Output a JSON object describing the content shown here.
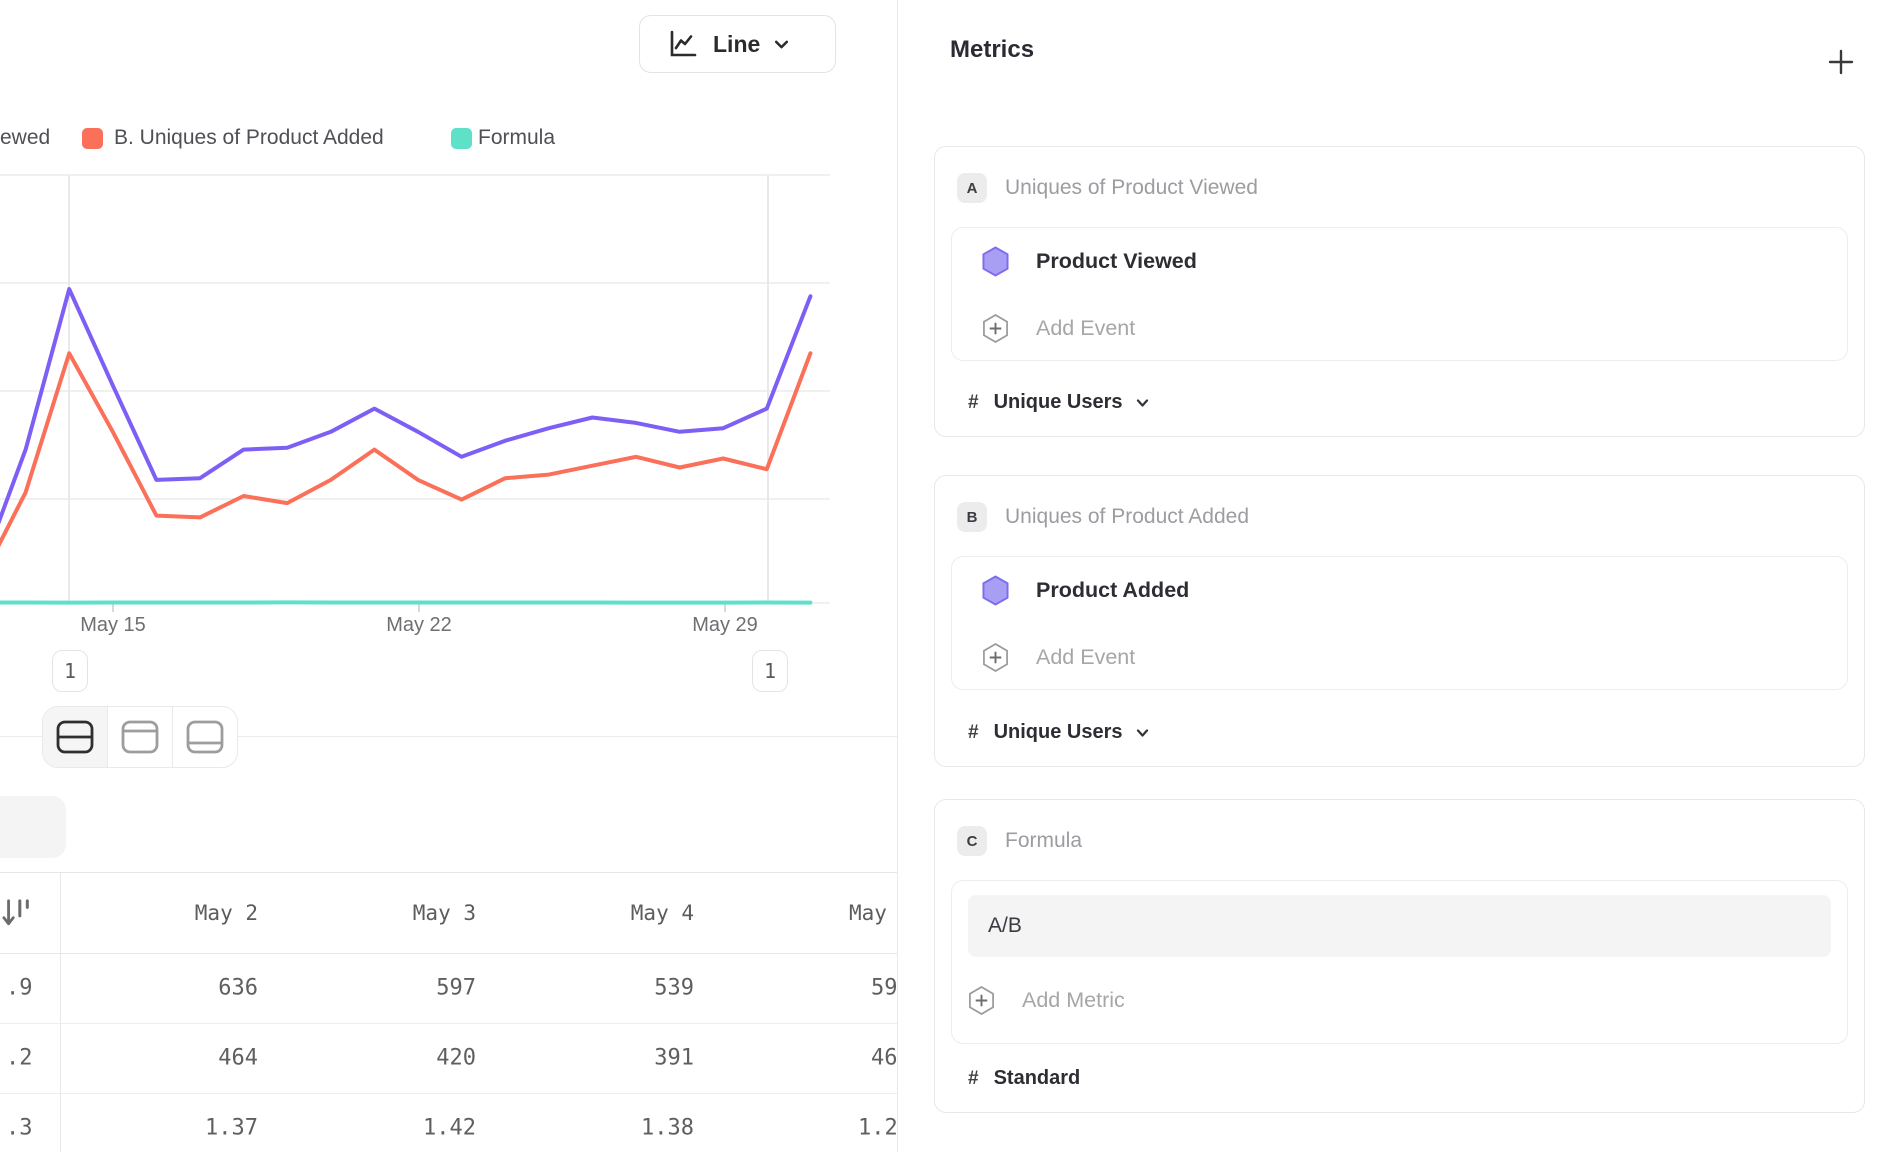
{
  "toolbar": {
    "chart_type_label": "Line"
  },
  "legend": {
    "item_a_partial": "ewed",
    "item_b": "B. Uniques of Product Added",
    "item_c": "Formula"
  },
  "chart_data": {
    "type": "line",
    "x": [
      "May 12",
      "May 13",
      "May 14",
      "May 15",
      "May 16",
      "May 17",
      "May 18",
      "May 19",
      "May 20",
      "May 21",
      "May 22",
      "May 23",
      "May 24",
      "May 25",
      "May 26",
      "May 27",
      "May 28",
      "May 29",
      "May 30",
      "May 31"
    ],
    "series": [
      {
        "name": "A. Uniques of Product Viewed",
        "color": "#7d5ff5",
        "values": [
          100,
          430,
          880,
          610,
          345,
          350,
          430,
          435,
          480,
          545,
          480,
          410,
          455,
          490,
          520,
          505,
          480,
          490,
          545,
          860
        ]
      },
      {
        "name": "B. Uniques of Product Added",
        "color": "#fa7059",
        "values": [
          70,
          310,
          700,
          480,
          245,
          240,
          300,
          280,
          345,
          430,
          345,
          290,
          350,
          360,
          385,
          410,
          380,
          405,
          375,
          700
        ]
      },
      {
        "name": "Formula (A/B)",
        "color": "#5fe0c8",
        "values": [
          1.43,
          1.39,
          1.26,
          1.27,
          1.41,
          1.46,
          1.43,
          1.55,
          1.39,
          1.27,
          1.39,
          1.41,
          1.3,
          1.36,
          1.35,
          1.23,
          1.26,
          1.21,
          1.45,
          1.23
        ]
      }
    ],
    "xticks": [
      "May 15",
      "May 22",
      "May 29"
    ],
    "annotations": [
      {
        "label": "1",
        "x": "May 14"
      },
      {
        "label": "1",
        "x": "May 30"
      }
    ],
    "ylim": [
      0,
      1200
    ],
    "ytick_interval": 300,
    "y_axis_labels_visible": false,
    "grid": "horizontal"
  },
  "table": {
    "frozen_values": [
      ".9",
      ".2",
      ".3"
    ],
    "columns": [
      "May 2",
      "May 3",
      "May 4",
      "May"
    ],
    "rows": [
      [
        "636",
        "597",
        "539",
        "59"
      ],
      [
        "464",
        "420",
        "391",
        "46"
      ],
      [
        "1.37",
        "1.42",
        "1.38",
        "1.2"
      ]
    ]
  },
  "metrics_panel": {
    "title": "Metrics",
    "cards": [
      {
        "badge": "A",
        "title": "Uniques of Product Viewed",
        "event": "Product Viewed",
        "add_label": "Add Event",
        "measure_prefix": "#",
        "measure": "Unique Users"
      },
      {
        "badge": "B",
        "title": "Uniques of Product Added",
        "event": "Product Added",
        "add_label": "Add Event",
        "measure_prefix": "#",
        "measure": "Unique Users"
      },
      {
        "badge": "C",
        "title": "Formula",
        "formula_value": "A/B",
        "add_label": "Add Metric",
        "measure_prefix": "#",
        "measure": "Standard"
      }
    ]
  },
  "colors": {
    "series_a": "#7d5ff5",
    "series_b": "#fa7059",
    "series_c": "#5fe0c8",
    "gridline": "#ececec",
    "divider": "#eaeaea"
  }
}
